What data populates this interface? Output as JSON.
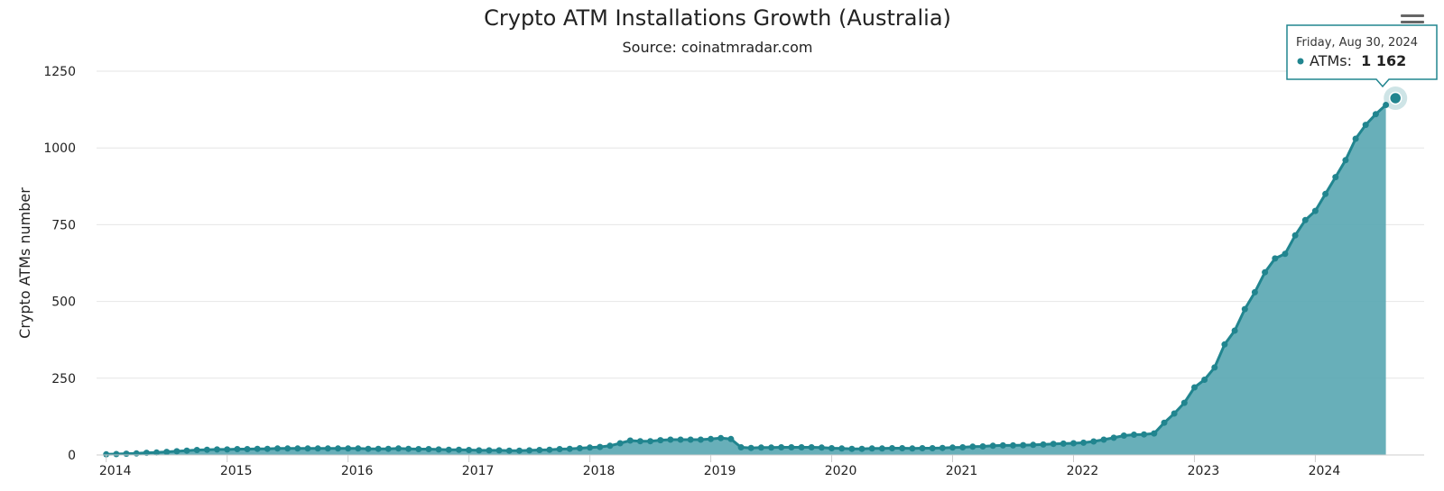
{
  "colors": {
    "series": "#21858f",
    "area": "#5ba8b3",
    "grid": "#e6e6e6"
  },
  "chart_data": {
    "type": "area",
    "title": "Crypto ATM Installations Growth (Australia)",
    "subtitle": "Source: coinatmradar.com",
    "ylabel": "Crypto ATMs number",
    "xlabel": "",
    "ylim": [
      0,
      1250
    ],
    "xlim": [
      2013.92,
      2024.9
    ],
    "yticks": [
      0,
      250,
      500,
      750,
      1000,
      1250
    ],
    "xticks": [
      "2014",
      "2015",
      "2016",
      "2017",
      "2018",
      "2019",
      "2020",
      "2021",
      "2022",
      "2023",
      "2024"
    ],
    "grid": true,
    "legend": "none",
    "series": [
      {
        "x": [
          "2014-01",
          "2014-02",
          "2014-03",
          "2014-04",
          "2014-05",
          "2014-06",
          "2014-07",
          "2014-08",
          "2014-09",
          "2014-10",
          "2014-11",
          "2014-12",
          "2015-01",
          "2015-02",
          "2015-03",
          "2015-04",
          "2015-05",
          "2015-06",
          "2015-07",
          "2015-08",
          "2015-09",
          "2015-10",
          "2015-11",
          "2015-12",
          "2016-01",
          "2016-02",
          "2016-03",
          "2016-04",
          "2016-05",
          "2016-06",
          "2016-07",
          "2016-08",
          "2016-09",
          "2016-10",
          "2016-11",
          "2016-12",
          "2017-01",
          "2017-02",
          "2017-03",
          "2017-04",
          "2017-05",
          "2017-06",
          "2017-07",
          "2017-08",
          "2017-09",
          "2017-10",
          "2017-11",
          "2017-12",
          "2018-01",
          "2018-02",
          "2018-03",
          "2018-04",
          "2018-05",
          "2018-06",
          "2018-07",
          "2018-08",
          "2018-09",
          "2018-10",
          "2018-11",
          "2018-12",
          "2019-01",
          "2019-02",
          "2019-03",
          "2019-04",
          "2019-05",
          "2019-06",
          "2019-07",
          "2019-08",
          "2019-09",
          "2019-10",
          "2019-11",
          "2019-12",
          "2020-01",
          "2020-02",
          "2020-03",
          "2020-04",
          "2020-05",
          "2020-06",
          "2020-07",
          "2020-08",
          "2020-09",
          "2020-10",
          "2020-11",
          "2020-12",
          "2021-01",
          "2021-02",
          "2021-03",
          "2021-04",
          "2021-05",
          "2021-06",
          "2021-07",
          "2021-08",
          "2021-09",
          "2021-10",
          "2021-11",
          "2021-12",
          "2022-01",
          "2022-02",
          "2022-03",
          "2022-04",
          "2022-05",
          "2022-06",
          "2022-07",
          "2022-08",
          "2022-09",
          "2022-10",
          "2022-11",
          "2022-12",
          "2023-01",
          "2023-02",
          "2023-03",
          "2023-04",
          "2023-05",
          "2023-06",
          "2023-07",
          "2023-08",
          "2023-09",
          "2023-10",
          "2023-11",
          "2023-12",
          "2024-01",
          "2024-02",
          "2024-03",
          "2024-04",
          "2024-05",
          "2024-06",
          "2024-07",
          "2024-08"
        ],
        "y": [
          2,
          3,
          4,
          5,
          7,
          8,
          10,
          12,
          14,
          16,
          17,
          18,
          18,
          19,
          19,
          20,
          20,
          21,
          21,
          21,
          21,
          21,
          21,
          21,
          21,
          21,
          20,
          20,
          20,
          21,
          20,
          19,
          19,
          18,
          17,
          17,
          16,
          15,
          15,
          15,
          14,
          14,
          15,
          16,
          17,
          19,
          20,
          22,
          24,
          26,
          30,
          38,
          47,
          45,
          45,
          48,
          50,
          50,
          50,
          50,
          52,
          55,
          52,
          25,
          23,
          24,
          24,
          25,
          25,
          25,
          25,
          24,
          22,
          21,
          20,
          20,
          21,
          21,
          22,
          22,
          21,
          22,
          22,
          23,
          24,
          25,
          27,
          28,
          30,
          31,
          31,
          32,
          33,
          34,
          36,
          37,
          38,
          40,
          44,
          50,
          56,
          63,
          66,
          67,
          70,
          105,
          135,
          170,
          220,
          245,
          285,
          360,
          405,
          475,
          530,
          595,
          640,
          655,
          715,
          765,
          795,
          850,
          905,
          960,
          1030,
          1075,
          1110,
          1140
        ]
      }
    ],
    "tooltip": {
      "date": "Friday, Aug 30, 2024",
      "label": "ATMs:",
      "value": "1 162"
    }
  }
}
